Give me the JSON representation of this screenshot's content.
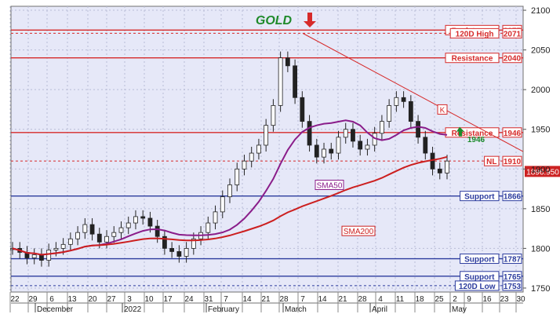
{
  "chart_data": {
    "type": "candlestick",
    "title": "GOLD",
    "ylim": [
      1745,
      2105
    ],
    "y_ticks": [
      1750,
      1800,
      1850,
      1900,
      1950,
      2000,
      2050,
      2100
    ],
    "x_ticks": [
      "22",
      "29",
      "6",
      "13",
      "20",
      "27",
      "3",
      "10",
      "17",
      "24",
      "31",
      "7",
      "14",
      "21",
      "28",
      "7",
      "14",
      "21",
      "28",
      "4",
      "11",
      "18",
      "25",
      "2",
      "9",
      "16",
      "23",
      "30"
    ],
    "x_months": [
      "December",
      "2022",
      "February",
      "March",
      "April",
      "May"
    ],
    "grid": true,
    "colors": {
      "background": "#e6e8f8",
      "resistance": "#d62a2a",
      "support": "#2c3c9e",
      "sma50": "#8a1d8a",
      "sma200": "#cc1f1f",
      "stop_green": "#1a8a2a",
      "stop_red": "#cc2222",
      "price_badge": "#cc2222"
    },
    "levels": [
      {
        "label": "Resistance",
        "value": 2075,
        "kind": "resistance",
        "style": "solid"
      },
      {
        "label": "120D High",
        "value": 2071,
        "kind": "resistance",
        "style": "dotted"
      },
      {
        "label": "Resistance",
        "value": 2040,
        "kind": "resistance",
        "style": "solid"
      },
      {
        "label": "Resistance",
        "value": 1946,
        "kind": "resistance",
        "style": "solid"
      },
      {
        "label": "NL",
        "value": 1910,
        "kind": "resistance",
        "style": "dotted"
      },
      {
        "label": "Support",
        "value": 1866,
        "kind": "support",
        "style": "solid"
      },
      {
        "label": "Support",
        "value": 1787,
        "kind": "support",
        "style": "solid"
      },
      {
        "label": "Support",
        "value": 1765,
        "kind": "support",
        "style": "solid"
      },
      {
        "label": "120D Low",
        "value": 1753,
        "kind": "support",
        "style": "dotted"
      }
    ],
    "annotations": {
      "sma50": "SMA50",
      "sma200": "SMA200",
      "k_marker": "K",
      "breakout_value": "1946",
      "last_price": "1896.950"
    },
    "last_price": 1896.95
  }
}
